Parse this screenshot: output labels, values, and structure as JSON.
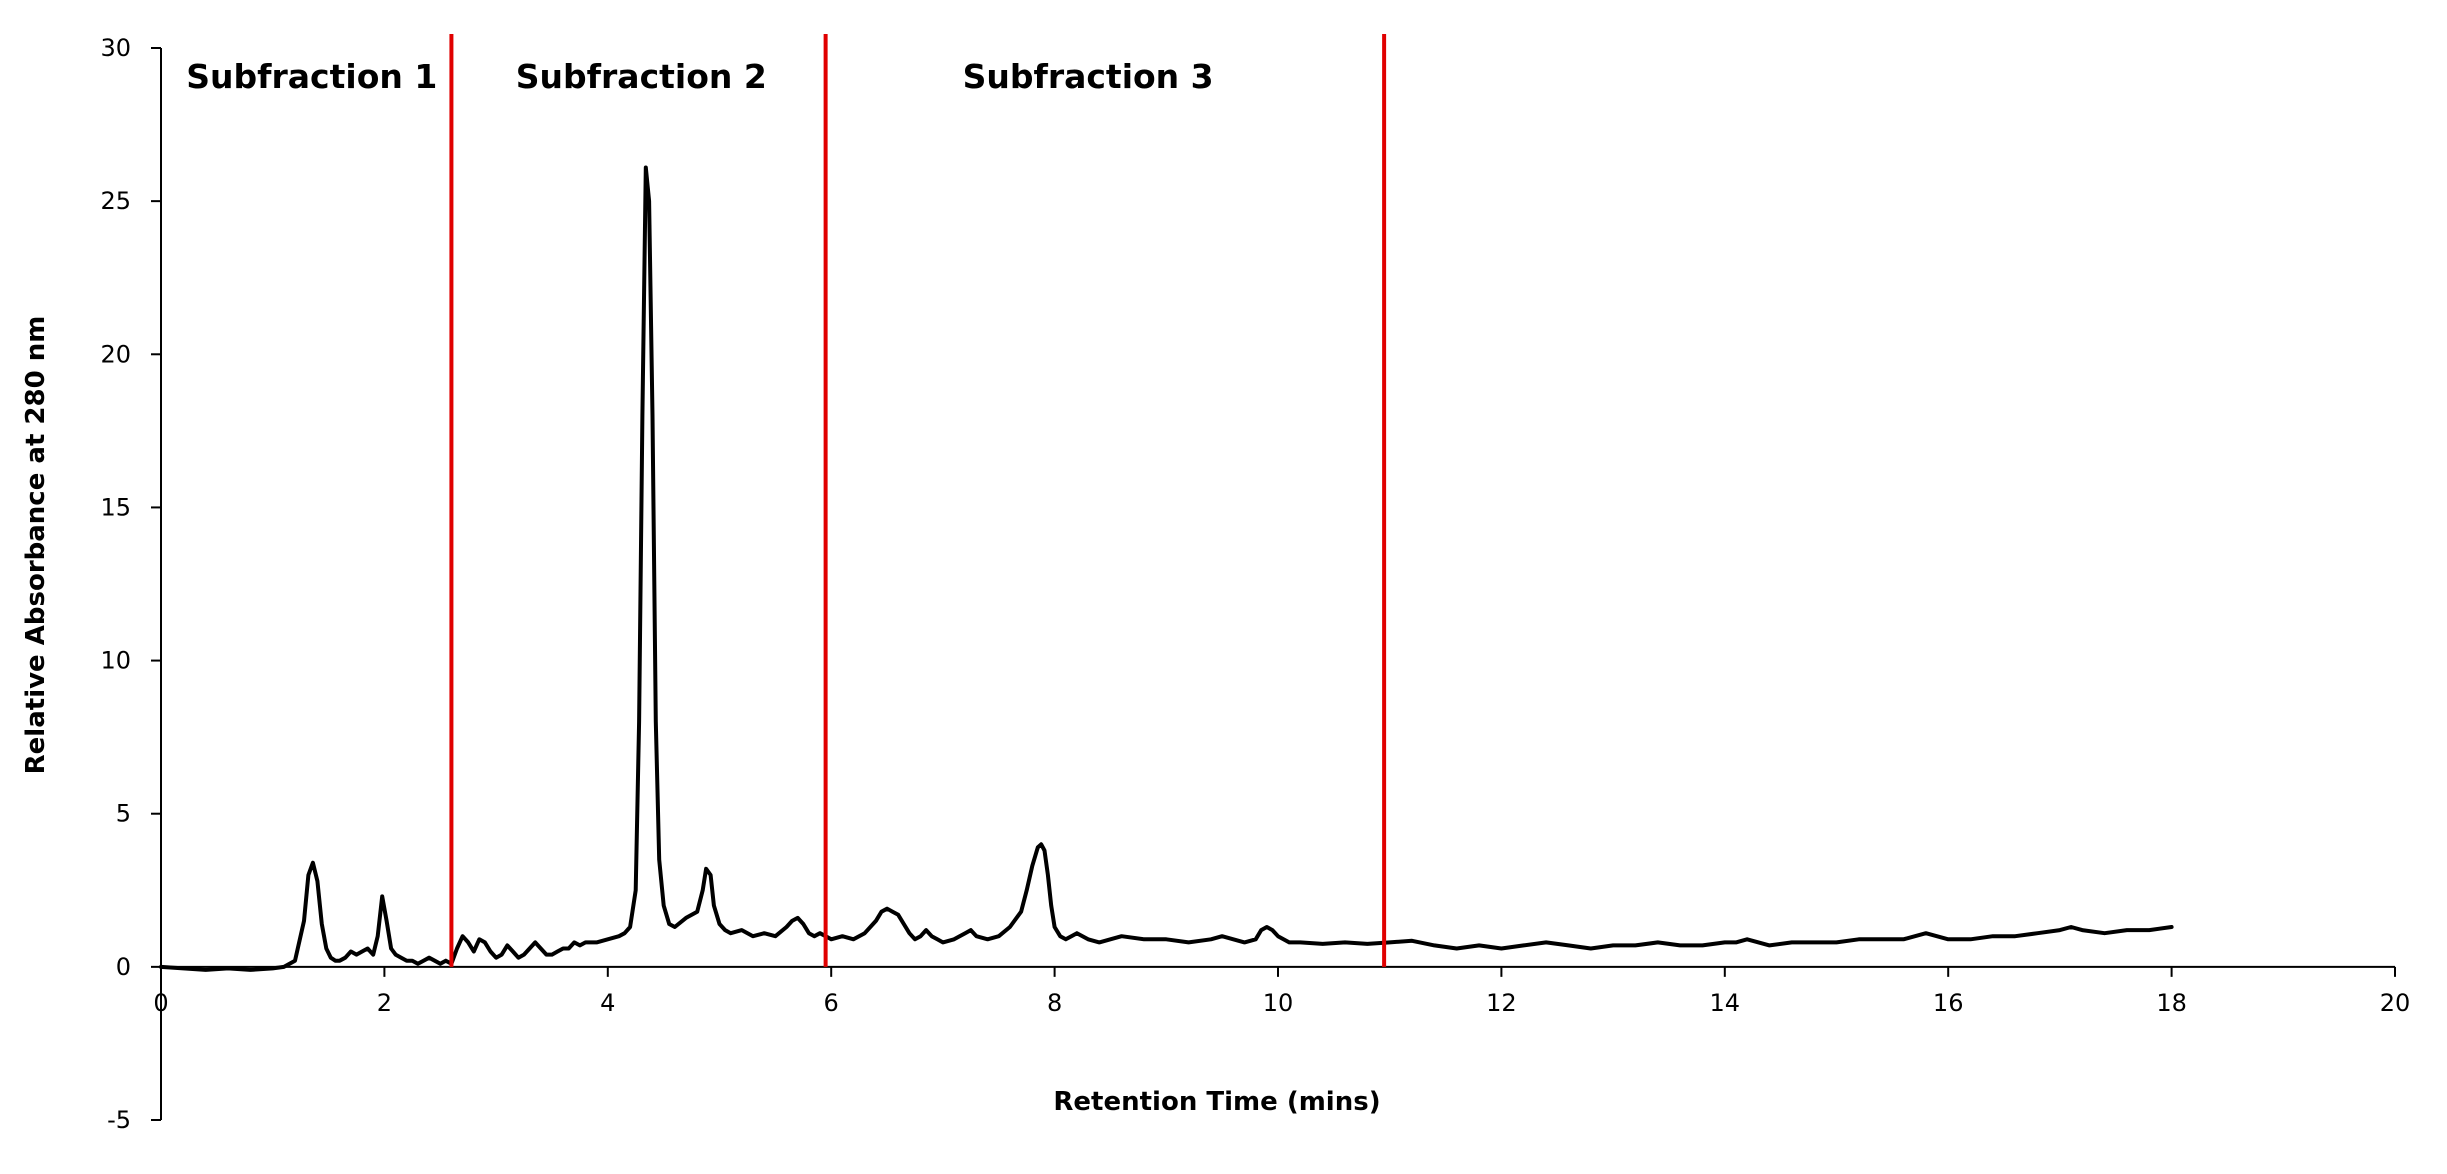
{
  "chart_data": {
    "type": "line",
    "title": "",
    "xlabel": "Retention Time (mins)",
    "ylabel": "Relative Absorbance at 280 nm",
    "xlim": [
      0,
      20
    ],
    "ylim": [
      -5,
      30
    ],
    "x_ticks": [
      0,
      2,
      4,
      6,
      8,
      10,
      12,
      14,
      16,
      18,
      20
    ],
    "y_ticks": [
      -5,
      0,
      5,
      10,
      15,
      20,
      25,
      30
    ],
    "grid": false,
    "legend": "none",
    "line_color": "#000000",
    "divider_color": "#e00000",
    "dividers": [
      2.6,
      5.95,
      10.95
    ],
    "regions": [
      {
        "label": "Subfraction 1",
        "x": 1.35
      },
      {
        "label": "Subfraction 2",
        "x": 4.3
      },
      {
        "label": "Subfraction 3",
        "x": 8.3
      }
    ],
    "series": [
      {
        "x": [
          0,
          0.2,
          0.4,
          0.6,
          0.8,
          1.0,
          1.1,
          1.2,
          1.28,
          1.32,
          1.36,
          1.4,
          1.44,
          1.48,
          1.52,
          1.56,
          1.6,
          1.65,
          1.7,
          1.75,
          1.8,
          1.85,
          1.9,
          1.94,
          1.98,
          2.02,
          2.06,
          2.1,
          2.15,
          2.2,
          2.25,
          2.3,
          2.35,
          2.4,
          2.45,
          2.5,
          2.55,
          2.6,
          2.65,
          2.7,
          2.75,
          2.8,
          2.85,
          2.9,
          2.95,
          3.0,
          3.05,
          3.1,
          3.15,
          3.2,
          3.25,
          3.3,
          3.35,
          3.4,
          3.45,
          3.5,
          3.55,
          3.6,
          3.65,
          3.7,
          3.75,
          3.8,
          3.9,
          4.0,
          4.1,
          4.15,
          4.2,
          4.25,
          4.28,
          4.31,
          4.34,
          4.37,
          4.4,
          4.43,
          4.46,
          4.5,
          4.55,
          4.6,
          4.7,
          4.8,
          4.85,
          4.88,
          4.92,
          4.95,
          5.0,
          5.05,
          5.1,
          5.2,
          5.3,
          5.4,
          5.5,
          5.6,
          5.65,
          5.7,
          5.75,
          5.8,
          5.85,
          5.9,
          5.95,
          6.0,
          6.1,
          6.2,
          6.3,
          6.4,
          6.45,
          6.5,
          6.55,
          6.6,
          6.65,
          6.7,
          6.75,
          6.8,
          6.85,
          6.9,
          6.95,
          7.0,
          7.1,
          7.2,
          7.25,
          7.3,
          7.4,
          7.5,
          7.6,
          7.7,
          7.75,
          7.8,
          7.85,
          7.88,
          7.91,
          7.94,
          7.97,
          8.0,
          8.05,
          8.1,
          8.15,
          8.2,
          8.3,
          8.4,
          8.5,
          8.6,
          8.8,
          9.0,
          9.2,
          9.4,
          9.5,
          9.6,
          9.7,
          9.8,
          9.85,
          9.9,
          9.95,
          10.0,
          10.1,
          10.2,
          10.4,
          10.6,
          10.8,
          11.0,
          11.2,
          11.4,
          11.6,
          11.8,
          12.0,
          12.2,
          12.4,
          12.6,
          12.8,
          13.0,
          13.2,
          13.4,
          13.6,
          13.8,
          14.0,
          14.1,
          14.2,
          14.4,
          14.6,
          14.8,
          15.0,
          15.2,
          15.4,
          15.6,
          15.8,
          16.0,
          16.2,
          16.4,
          16.6,
          16.8,
          17.0,
          17.1,
          17.2,
          17.4,
          17.6,
          17.8,
          18.0
        ],
        "y": [
          0.0,
          -0.05,
          -0.1,
          -0.05,
          -0.1,
          -0.05,
          0.0,
          0.2,
          1.5,
          3.0,
          3.4,
          2.8,
          1.4,
          0.6,
          0.3,
          0.2,
          0.2,
          0.3,
          0.5,
          0.4,
          0.5,
          0.6,
          0.4,
          1.0,
          2.3,
          1.5,
          0.6,
          0.4,
          0.3,
          0.2,
          0.2,
          0.1,
          0.2,
          0.3,
          0.2,
          0.1,
          0.2,
          0.1,
          0.6,
          1.0,
          0.8,
          0.5,
          0.9,
          0.8,
          0.5,
          0.3,
          0.4,
          0.7,
          0.5,
          0.3,
          0.4,
          0.6,
          0.8,
          0.6,
          0.4,
          0.4,
          0.5,
          0.6,
          0.6,
          0.8,
          0.7,
          0.8,
          0.8,
          0.9,
          1.0,
          1.1,
          1.3,
          2.5,
          8.0,
          18.0,
          26.1,
          25.0,
          18.0,
          8.0,
          3.5,
          2.0,
          1.4,
          1.3,
          1.6,
          1.8,
          2.5,
          3.2,
          3.0,
          2.0,
          1.4,
          1.2,
          1.1,
          1.2,
          1.0,
          1.1,
          1.0,
          1.3,
          1.5,
          1.6,
          1.4,
          1.1,
          1.0,
          1.1,
          1.0,
          0.9,
          1.0,
          0.9,
          1.1,
          1.5,
          1.8,
          1.9,
          1.8,
          1.7,
          1.4,
          1.1,
          0.9,
          1.0,
          1.2,
          1.0,
          0.9,
          0.8,
          0.9,
          1.1,
          1.2,
          1.0,
          0.9,
          1.0,
          1.3,
          1.8,
          2.5,
          3.3,
          3.9,
          4.0,
          3.8,
          3.0,
          2.0,
          1.3,
          1.0,
          0.9,
          1.0,
          1.1,
          0.9,
          0.8,
          0.9,
          1.0,
          0.9,
          0.9,
          0.8,
          0.9,
          1.0,
          0.9,
          0.8,
          0.9,
          1.2,
          1.3,
          1.2,
          1.0,
          0.8,
          0.8,
          0.75,
          0.8,
          0.75,
          0.8,
          0.85,
          0.7,
          0.6,
          0.7,
          0.6,
          0.7,
          0.8,
          0.7,
          0.6,
          0.7,
          0.7,
          0.8,
          0.7,
          0.7,
          0.8,
          0.8,
          0.9,
          0.7,
          0.8,
          0.8,
          0.8,
          0.9,
          0.9,
          0.9,
          1.1,
          0.9,
          0.9,
          1.0,
          1.0,
          1.1,
          1.2,
          1.3,
          1.2,
          1.1,
          1.2,
          1.2,
          1.3
        ]
      }
    ]
  }
}
